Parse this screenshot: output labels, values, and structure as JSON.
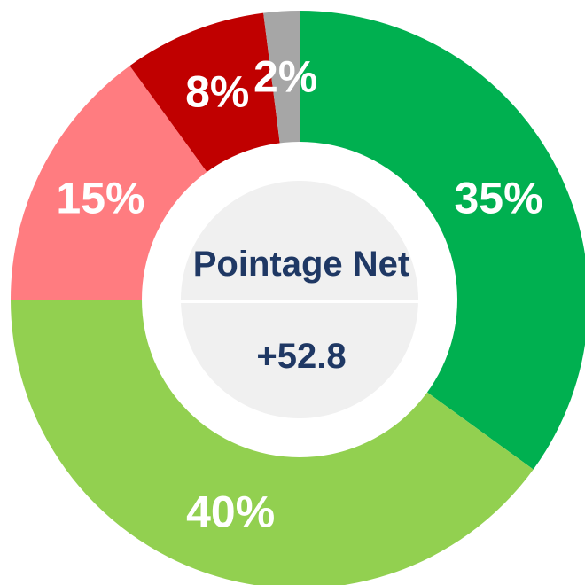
{
  "chart_data": {
    "type": "donut",
    "values": [
      35,
      40,
      15,
      8,
      2
    ],
    "value_labels": [
      "35%",
      "40%",
      "15%",
      "8%",
      "2%"
    ],
    "colors": [
      "#00b050",
      "#92d050",
      "#ff7c80",
      "#c00000",
      "#a6a6a6"
    ],
    "annotations": [
      "Pointage Net",
      "+52.8"
    ]
  }
}
